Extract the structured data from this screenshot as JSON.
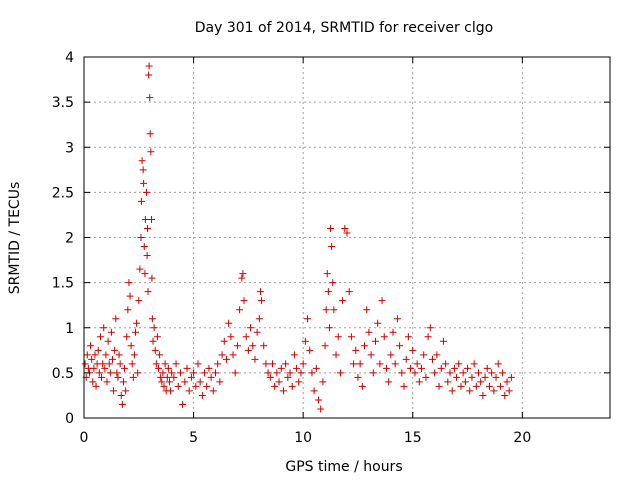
{
  "chart_data": {
    "type": "scatter",
    "title": "Day 301 of 2014, SRMTID for receiver clgo",
    "xlabel": "GPS time / hours",
    "ylabel": "SRMTID / TECUs",
    "xlim": [
      0,
      24
    ],
    "ylim": [
      0,
      4
    ],
    "x_ticks": [
      0,
      5,
      10,
      15,
      20
    ],
    "x_tick_labels": [
      "0",
      "5",
      "10",
      "15",
      "20"
    ],
    "y_ticks": [
      0,
      0.5,
      1,
      1.5,
      2,
      2.5,
      3,
      3.5,
      4
    ],
    "y_tick_labels": [
      "0",
      "0.5",
      "1",
      "1.5",
      "2",
      "2.5",
      "3",
      "3.5",
      "4"
    ],
    "grid": true,
    "marker": "plus",
    "marker_color": "#d00000",
    "series": [
      {
        "name": "SRMTID",
        "points": [
          [
            0.05,
            0.6
          ],
          [
            0.1,
            0.45
          ],
          [
            0.15,
            0.7
          ],
          [
            0.2,
            0.55
          ],
          [
            0.25,
            0.5
          ],
          [
            0.3,
            0.8
          ],
          [
            0.35,
            0.65
          ],
          [
            0.4,
            0.4
          ],
          [
            0.45,
            0.55
          ],
          [
            0.5,
            0.7
          ],
          [
            0.55,
            0.35
          ],
          [
            0.6,
            0.6
          ],
          [
            0.65,
            0.75
          ],
          [
            0.7,
            0.5
          ],
          [
            0.75,
            0.9
          ],
          [
            0.8,
            0.45
          ],
          [
            0.85,
            0.6
          ],
          [
            0.9,
            1.0
          ],
          [
            0.95,
            0.55
          ],
          [
            1.0,
            0.7
          ],
          [
            1.05,
            0.4
          ],
          [
            1.1,
            0.85
          ],
          [
            1.15,
            0.6
          ],
          [
            1.2,
            0.5
          ],
          [
            1.25,
            0.95
          ],
          [
            1.3,
            0.65
          ],
          [
            1.35,
            0.3
          ],
          [
            1.4,
            0.75
          ],
          [
            1.45,
            1.1
          ],
          [
            1.5,
            0.5
          ],
          [
            1.55,
            0.45
          ],
          [
            1.6,
            0.7
          ],
          [
            1.65,
            0.6
          ],
          [
            1.7,
            0.25
          ],
          [
            1.75,
            0.15
          ],
          [
            1.8,
            0.4
          ],
          [
            1.85,
            0.55
          ],
          [
            1.9,
            0.3
          ],
          [
            1.95,
            0.9
          ],
          [
            2.0,
            1.2
          ],
          [
            2.05,
            1.5
          ],
          [
            2.1,
            1.35
          ],
          [
            2.15,
            0.8
          ],
          [
            2.2,
            0.6
          ],
          [
            2.25,
            0.45
          ],
          [
            2.3,
            0.7
          ],
          [
            2.35,
            0.95
          ],
          [
            2.4,
            1.05
          ],
          [
            2.45,
            0.5
          ],
          [
            2.5,
            1.3
          ],
          [
            2.55,
            1.65
          ],
          [
            2.6,
            2.0
          ],
          [
            2.62,
            2.4
          ],
          [
            2.65,
            2.85
          ],
          [
            2.7,
            2.75
          ],
          [
            2.72,
            2.6
          ],
          [
            2.75,
            1.9
          ],
          [
            2.78,
            1.6
          ],
          [
            2.8,
            2.2
          ],
          [
            2.85,
            2.5
          ],
          [
            2.88,
            1.8
          ],
          [
            2.9,
            2.1
          ],
          [
            2.92,
            1.4
          ],
          [
            2.95,
            3.8
          ],
          [
            2.97,
            3.9
          ],
          [
            3.0,
            3.55
          ],
          [
            3.02,
            3.15
          ],
          [
            3.05,
            2.95
          ],
          [
            3.08,
            2.2
          ],
          [
            3.1,
            1.55
          ],
          [
            3.12,
            1.1
          ],
          [
            3.15,
            0.85
          ],
          [
            3.2,
            1.0
          ],
          [
            3.25,
            0.75
          ],
          [
            3.3,
            0.6
          ],
          [
            3.35,
            0.9
          ],
          [
            3.4,
            0.55
          ],
          [
            3.45,
            0.7
          ],
          [
            3.5,
            0.45
          ],
          [
            3.55,
            0.4
          ],
          [
            3.6,
            0.5
          ],
          [
            3.65,
            0.35
          ],
          [
            3.7,
            0.6
          ],
          [
            3.75,
            0.3
          ],
          [
            3.8,
            0.45
          ],
          [
            3.85,
            0.55
          ],
          [
            3.9,
            0.4
          ],
          [
            3.95,
            0.3
          ],
          [
            4.0,
            0.5
          ],
          [
            4.1,
            0.45
          ],
          [
            4.2,
            0.6
          ],
          [
            4.3,
            0.35
          ],
          [
            4.4,
            0.5
          ],
          [
            4.5,
            0.15
          ],
          [
            4.6,
            0.4
          ],
          [
            4.7,
            0.55
          ],
          [
            4.8,
            0.3
          ],
          [
            4.9,
            0.45
          ],
          [
            5.0,
            0.5
          ],
          [
            5.1,
            0.35
          ],
          [
            5.2,
            0.6
          ],
          [
            5.3,
            0.4
          ],
          [
            5.4,
            0.25
          ],
          [
            5.5,
            0.5
          ],
          [
            5.6,
            0.35
          ],
          [
            5.7,
            0.55
          ],
          [
            5.8,
            0.45
          ],
          [
            5.9,
            0.3
          ],
          [
            6.0,
            0.5
          ],
          [
            6.1,
            0.6
          ],
          [
            6.2,
            0.4
          ],
          [
            6.3,
            0.7
          ],
          [
            6.4,
            0.85
          ],
          [
            6.5,
            0.65
          ],
          [
            6.6,
            1.05
          ],
          [
            6.7,
            0.9
          ],
          [
            6.8,
            0.7
          ],
          [
            6.9,
            0.5
          ],
          [
            7.0,
            0.8
          ],
          [
            7.1,
            1.2
          ],
          [
            7.2,
            1.55
          ],
          [
            7.25,
            1.6
          ],
          [
            7.3,
            1.3
          ],
          [
            7.4,
            0.9
          ],
          [
            7.5,
            0.75
          ],
          [
            7.6,
            1.0
          ],
          [
            7.7,
            0.8
          ],
          [
            7.8,
            0.65
          ],
          [
            7.9,
            0.95
          ],
          [
            8.0,
            1.1
          ],
          [
            8.05,
            1.4
          ],
          [
            8.1,
            1.3
          ],
          [
            8.2,
            0.8
          ],
          [
            8.3,
            0.6
          ],
          [
            8.4,
            0.5
          ],
          [
            8.5,
            0.45
          ],
          [
            8.6,
            0.6
          ],
          [
            8.7,
            0.35
          ],
          [
            8.8,
            0.5
          ],
          [
            8.9,
            0.4
          ],
          [
            9.0,
            0.55
          ],
          [
            9.1,
            0.3
          ],
          [
            9.2,
            0.6
          ],
          [
            9.3,
            0.45
          ],
          [
            9.4,
            0.5
          ],
          [
            9.5,
            0.35
          ],
          [
            9.6,
            0.7
          ],
          [
            9.7,
            0.55
          ],
          [
            9.8,
            0.4
          ],
          [
            9.9,
            0.5
          ],
          [
            10.0,
            0.6
          ],
          [
            10.1,
            0.85
          ],
          [
            10.2,
            1.1
          ],
          [
            10.3,
            0.75
          ],
          [
            10.4,
            0.5
          ],
          [
            10.5,
            0.3
          ],
          [
            10.6,
            0.55
          ],
          [
            10.7,
            0.2
          ],
          [
            10.8,
            0.1
          ],
          [
            10.9,
            0.4
          ],
          [
            11.0,
            0.8
          ],
          [
            11.05,
            1.2
          ],
          [
            11.1,
            1.6
          ],
          [
            11.15,
            1.4
          ],
          [
            11.2,
            1.0
          ],
          [
            11.25,
            2.1
          ],
          [
            11.3,
            1.9
          ],
          [
            11.35,
            1.5
          ],
          [
            11.4,
            1.2
          ],
          [
            11.5,
            0.7
          ],
          [
            11.6,
            0.9
          ],
          [
            11.7,
            0.5
          ],
          [
            11.8,
            1.3
          ],
          [
            11.9,
            2.1
          ],
          [
            12.0,
            2.05
          ],
          [
            12.1,
            1.4
          ],
          [
            12.2,
            0.9
          ],
          [
            12.3,
            0.6
          ],
          [
            12.4,
            0.75
          ],
          [
            12.5,
            0.45
          ],
          [
            12.6,
            0.6
          ],
          [
            12.7,
            0.35
          ],
          [
            12.8,
            0.8
          ],
          [
            12.9,
            1.2
          ],
          [
            13.0,
            0.95
          ],
          [
            13.1,
            0.7
          ],
          [
            13.2,
            0.5
          ],
          [
            13.3,
            0.85
          ],
          [
            13.4,
            1.05
          ],
          [
            13.5,
            0.6
          ],
          [
            13.6,
            1.3
          ],
          [
            13.7,
            0.9
          ],
          [
            13.8,
            0.55
          ],
          [
            13.9,
            0.4
          ],
          [
            14.0,
            0.7
          ],
          [
            14.1,
            0.95
          ],
          [
            14.2,
            0.6
          ],
          [
            14.3,
            1.1
          ],
          [
            14.4,
            0.8
          ],
          [
            14.5,
            0.5
          ],
          [
            14.6,
            0.35
          ],
          [
            14.7,
            0.65
          ],
          [
            14.8,
            0.9
          ],
          [
            14.9,
            0.55
          ],
          [
            15.0,
            0.75
          ],
          [
            15.1,
            0.5
          ],
          [
            15.2,
            0.6
          ],
          [
            15.3,
            0.4
          ],
          [
            15.4,
            0.55
          ],
          [
            15.5,
            0.7
          ],
          [
            15.6,
            0.45
          ],
          [
            15.7,
            0.9
          ],
          [
            15.8,
            1.0
          ],
          [
            15.9,
            0.65
          ],
          [
            16.0,
            0.5
          ],
          [
            16.1,
            0.7
          ],
          [
            16.2,
            0.35
          ],
          [
            16.3,
            0.55
          ],
          [
            16.4,
            0.85
          ],
          [
            16.5,
            0.6
          ],
          [
            16.6,
            0.4
          ],
          [
            16.7,
            0.5
          ],
          [
            16.8,
            0.3
          ],
          [
            16.9,
            0.55
          ],
          [
            17.0,
            0.45
          ],
          [
            17.1,
            0.6
          ],
          [
            17.2,
            0.35
          ],
          [
            17.3,
            0.5
          ],
          [
            17.4,
            0.4
          ],
          [
            17.5,
            0.55
          ],
          [
            17.6,
            0.3
          ],
          [
            17.7,
            0.45
          ],
          [
            17.8,
            0.6
          ],
          [
            17.9,
            0.35
          ],
          [
            18.0,
            0.5
          ],
          [
            18.1,
            0.4
          ],
          [
            18.2,
            0.25
          ],
          [
            18.3,
            0.45
          ],
          [
            18.4,
            0.55
          ],
          [
            18.5,
            0.35
          ],
          [
            18.6,
            0.5
          ],
          [
            18.7,
            0.3
          ],
          [
            18.8,
            0.45
          ],
          [
            18.9,
            0.6
          ],
          [
            19.0,
            0.35
          ],
          [
            19.1,
            0.5
          ],
          [
            19.2,
            0.25
          ],
          [
            19.3,
            0.4
          ],
          [
            19.4,
            0.3
          ],
          [
            19.5,
            0.45
          ]
        ]
      }
    ]
  }
}
